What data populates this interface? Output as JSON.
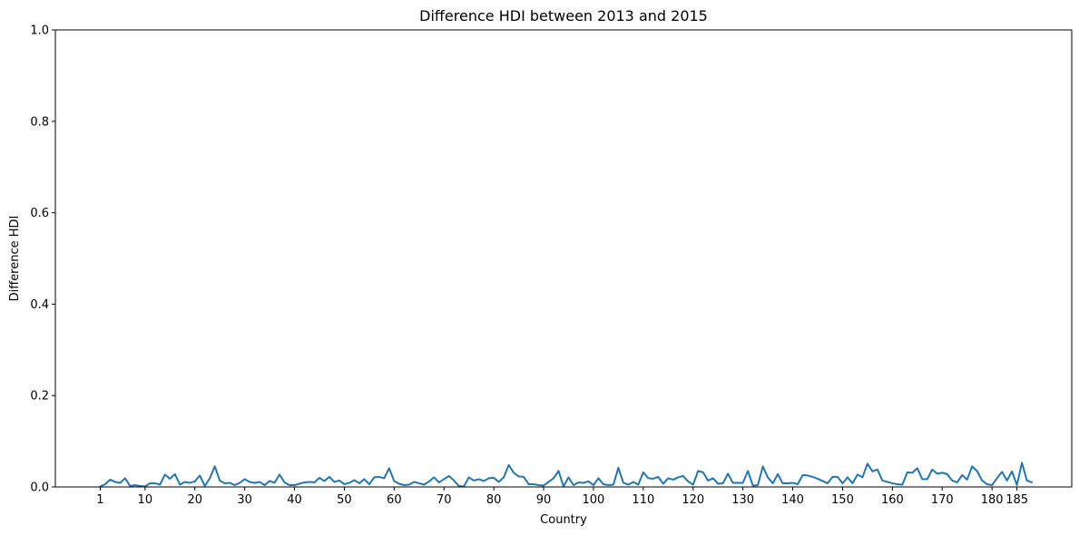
{
  "chart_data": {
    "type": "line",
    "title": "Difference HDI between 2013 and 2015",
    "xlabel": "Country",
    "ylabel": "Difference HDI",
    "xlim": [
      -8,
      196
    ],
    "ylim": [
      0,
      1
    ],
    "x_ticks": [
      1,
      10,
      20,
      30,
      40,
      50,
      60,
      70,
      80,
      90,
      100,
      110,
      120,
      130,
      140,
      150,
      160,
      170,
      180,
      185
    ],
    "y_ticks": [
      0.0,
      0.2,
      0.4,
      0.6,
      0.8,
      1.0
    ],
    "y_tick_labels": [
      "0.0",
      "0.2",
      "0.4",
      "0.6",
      "0.8",
      "1.0"
    ],
    "grid": false,
    "series": [
      {
        "color": "#1f77b4",
        "x_start": 1,
        "values": [
          0.001,
          0.006,
          0.016,
          0.011,
          0.009,
          0.019,
          0.002,
          0.004,
          0.002,
          0.001,
          0.008,
          0.008,
          0.005,
          0.027,
          0.018,
          0.028,
          0.005,
          0.011,
          0.009,
          0.012,
          0.025,
          0.002,
          0.019,
          0.045,
          0.014,
          0.008,
          0.009,
          0.004,
          0.009,
          0.017,
          0.011,
          0.009,
          0.011,
          0.004,
          0.013,
          0.009,
          0.027,
          0.01,
          0.004,
          0.004,
          0.007,
          0.01,
          0.011,
          0.01,
          0.02,
          0.013,
          0.022,
          0.011,
          0.014,
          0.006,
          0.009,
          0.015,
          0.008,
          0.017,
          0.006,
          0.021,
          0.022,
          0.019,
          0.041,
          0.013,
          0.007,
          0.004,
          0.005,
          0.011,
          0.008,
          0.005,
          0.012,
          0.021,
          0.01,
          0.017,
          0.024,
          0.014,
          0.002,
          0.001,
          0.021,
          0.014,
          0.017,
          0.013,
          0.019,
          0.02,
          0.011,
          0.021,
          0.048,
          0.031,
          0.023,
          0.022,
          0.006,
          0.006,
          0.004,
          0.003,
          0.011,
          0.019,
          0.035,
          0.001,
          0.021,
          0.004,
          0.01,
          0.009,
          0.012,
          0.004,
          0.019,
          0.006,
          0.004,
          0.005,
          0.042,
          0.009,
          0.005,
          0.011,
          0.005,
          0.032,
          0.019,
          0.018,
          0.022,
          0.007,
          0.019,
          0.016,
          0.021,
          0.024,
          0.012,
          0.005,
          0.035,
          0.032,
          0.014,
          0.019,
          0.007,
          0.008,
          0.029,
          0.009,
          0.009,
          0.009,
          0.035,
          0.003,
          0.004,
          0.045,
          0.021,
          0.008,
          0.028,
          0.008,
          0.008,
          0.009,
          0.006,
          0.026,
          0.025,
          0.022,
          0.018,
          0.013,
          0.008,
          0.022,
          0.022,
          0.008,
          0.021,
          0.008,
          0.027,
          0.021,
          0.051,
          0.034,
          0.038,
          0.014,
          0.011,
          0.008,
          0.006,
          0.005,
          0.032,
          0.031,
          0.041,
          0.017,
          0.017,
          0.038,
          0.029,
          0.031,
          0.028,
          0.014,
          0.01,
          0.026,
          0.016,
          0.045,
          0.035,
          0.014,
          0.006,
          0.004,
          0.019,
          0.033,
          0.014,
          0.034,
          0.004,
          0.053,
          0.014,
          0.01
        ]
      }
    ]
  }
}
